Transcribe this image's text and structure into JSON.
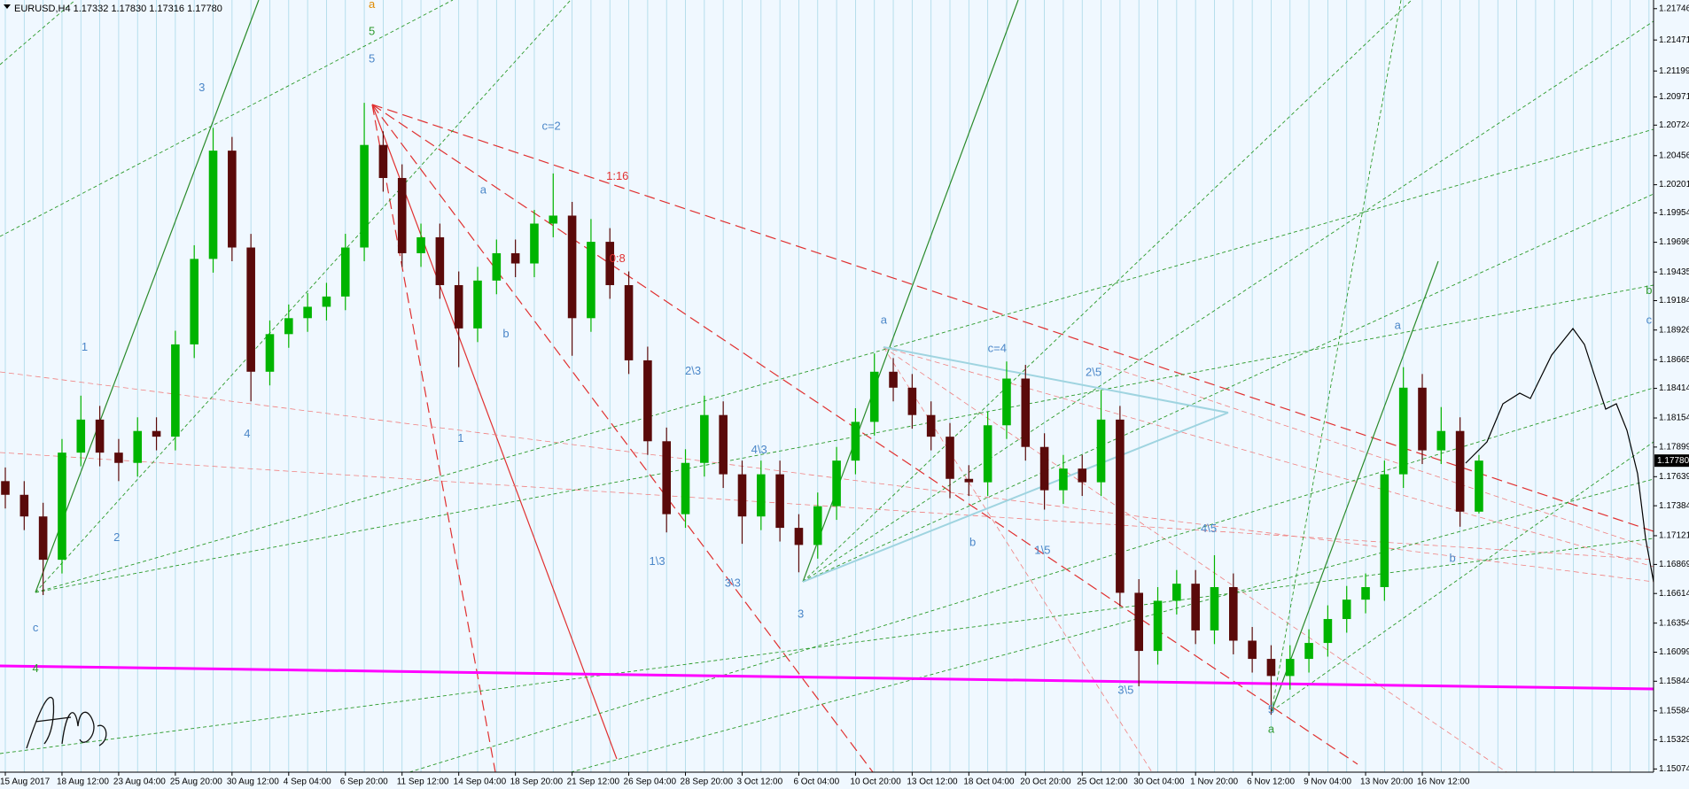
{
  "chart_data": {
    "type": "candlestick",
    "title": "EURUSD,H4  1.17332 1.17830 1.17316 1.17780",
    "categories": [
      "15 Aug 2017",
      null,
      null,
      "18 Aug 12:00",
      null,
      null,
      "23 Aug 04:00",
      null,
      null,
      "25 Aug 20:00",
      null,
      null,
      "30 Aug 12:00",
      null,
      null,
      "4 Sep 04:00",
      null,
      null,
      "6 Sep 20:00",
      null,
      null,
      "11 Sep 12:00",
      null,
      null,
      "14 Sep 04:00",
      null,
      null,
      "18 Sep 20:00",
      null,
      null,
      "21 Sep 12:00",
      null,
      null,
      "26 Sep 04:00",
      null,
      null,
      "28 Sep 20:00",
      null,
      null,
      "3 Oct 12:00",
      null,
      null,
      "6 Oct 04:00",
      null,
      null,
      "10 Oct 20:00",
      null,
      null,
      "13 Oct 12:00",
      null,
      null,
      "18 Oct 04:00",
      null,
      null,
      "20 Oct 20:00",
      null,
      null,
      "25 Oct 12:00",
      null,
      null,
      "30 Oct 04:00",
      null,
      null,
      "1 Nov 20:00",
      null,
      null,
      "6 Nov 12:00",
      null,
      null,
      "9 Nov 04:00",
      null,
      null,
      "13 Nov 20:00",
      null,
      null,
      "16 Nov 12:00",
      null,
      null,
      null
    ],
    "ohlc": [
      [
        1.176,
        1.1772,
        1.1736,
        1.1748
      ],
      [
        1.1748,
        1.176,
        1.1717,
        1.1729
      ],
      [
        1.1729,
        1.1741,
        1.166,
        1.1691
      ],
      [
        1.1691,
        1.1797,
        1.1679,
        1.1785
      ],
      [
        1.1785,
        1.1835,
        1.1773,
        1.1814
      ],
      [
        1.1814,
        1.1826,
        1.1773,
        1.1785
      ],
      [
        1.1785,
        1.1797,
        1.176,
        1.1776
      ],
      [
        1.1776,
        1.1816,
        1.1764,
        1.1804
      ],
      [
        1.1804,
        1.1816,
        1.1787,
        1.1799
      ],
      [
        1.1799,
        1.1892,
        1.1787,
        1.188
      ],
      [
        1.188,
        1.1967,
        1.1868,
        1.1955
      ],
      [
        1.1955,
        1.207,
        1.1943,
        1.205
      ],
      [
        1.205,
        1.2062,
        1.1953,
        1.1965
      ],
      [
        1.1965,
        1.1977,
        1.183,
        1.1856
      ],
      [
        1.1856,
        1.1901,
        1.1844,
        1.1889
      ],
      [
        1.1889,
        1.1915,
        1.1877,
        1.1903
      ],
      [
        1.1903,
        1.1925,
        1.1891,
        1.1913
      ],
      [
        1.1913,
        1.1934,
        1.1901,
        1.1922
      ],
      [
        1.1922,
        1.1977,
        1.191,
        1.1965
      ],
      [
        1.1965,
        1.2092,
        1.1953,
        1.2055
      ],
      [
        1.2055,
        1.2067,
        1.2014,
        1.2026
      ],
      [
        1.2026,
        1.2038,
        1.1948,
        1.196
      ],
      [
        1.196,
        1.1986,
        1.1948,
        1.1974
      ],
      [
        1.1974,
        1.1986,
        1.192,
        1.1932
      ],
      [
        1.1932,
        1.1944,
        1.186,
        1.1894
      ],
      [
        1.1894,
        1.1948,
        1.1882,
        1.1936
      ],
      [
        1.1936,
        1.1972,
        1.1924,
        1.196
      ],
      [
        1.196,
        1.1972,
        1.1939,
        1.1951
      ],
      [
        1.1951,
        1.1998,
        1.1939,
        1.1986
      ],
      [
        1.1986,
        1.203,
        1.1974,
        1.1993
      ],
      [
        1.1993,
        1.2005,
        1.187,
        1.1903
      ],
      [
        1.1903,
        1.199,
        1.1891,
        1.197
      ],
      [
        1.197,
        1.1982,
        1.192,
        1.1932
      ],
      [
        1.1932,
        1.1944,
        1.1854,
        1.1866
      ],
      [
        1.1866,
        1.1878,
        1.1783,
        1.1795
      ],
      [
        1.1795,
        1.1807,
        1.1715,
        1.1731
      ],
      [
        1.1731,
        1.1788,
        1.1719,
        1.1776
      ],
      [
        1.1776,
        1.1835,
        1.1764,
        1.1818
      ],
      [
        1.1818,
        1.183,
        1.1754,
        1.1766
      ],
      [
        1.1766,
        1.1778,
        1.1705,
        1.1729
      ],
      [
        1.1729,
        1.1778,
        1.1717,
        1.1766
      ],
      [
        1.1766,
        1.1778,
        1.1707,
        1.1719
      ],
      [
        1.1719,
        1.1731,
        1.168,
        1.1704
      ],
      [
        1.1704,
        1.175,
        1.1692,
        1.1738
      ],
      [
        1.1738,
        1.179,
        1.1726,
        1.1778
      ],
      [
        1.1778,
        1.1824,
        1.1766,
        1.1812
      ],
      [
        1.1812,
        1.1872,
        1.18,
        1.1856
      ],
      [
        1.1856,
        1.1868,
        1.183,
        1.1842
      ],
      [
        1.1842,
        1.1854,
        1.1806,
        1.1818
      ],
      [
        1.1818,
        1.183,
        1.1787,
        1.1799
      ],
      [
        1.1799,
        1.1811,
        1.1745,
        1.1762
      ],
      [
        1.1762,
        1.1774,
        1.1747,
        1.1759
      ],
      [
        1.1759,
        1.1821,
        1.1747,
        1.1809
      ],
      [
        1.1809,
        1.1865,
        1.1797,
        1.185
      ],
      [
        1.185,
        1.1862,
        1.1778,
        1.179
      ],
      [
        1.179,
        1.1802,
        1.1735,
        1.1752
      ],
      [
        1.1752,
        1.1783,
        1.174,
        1.1771
      ],
      [
        1.1771,
        1.1783,
        1.1747,
        1.1759
      ],
      [
        1.1759,
        1.184,
        1.1747,
        1.1814
      ],
      [
        1.1814,
        1.1826,
        1.165,
        1.1662
      ],
      [
        1.1662,
        1.1674,
        1.158,
        1.1611
      ],
      [
        1.1611,
        1.1667,
        1.1599,
        1.1655
      ],
      [
        1.1655,
        1.1682,
        1.1643,
        1.167
      ],
      [
        1.167,
        1.1682,
        1.1617,
        1.1629
      ],
      [
        1.1629,
        1.1695,
        1.1617,
        1.1667
      ],
      [
        1.1667,
        1.1679,
        1.1608,
        1.162
      ],
      [
        1.162,
        1.1632,
        1.1592,
        1.1604
      ],
      [
        1.1604,
        1.1616,
        1.1555,
        1.1589
      ],
      [
        1.1589,
        1.1616,
        1.1577,
        1.1604
      ],
      [
        1.1604,
        1.163,
        1.1592,
        1.1618
      ],
      [
        1.1618,
        1.1651,
        1.1606,
        1.1639
      ],
      [
        1.1639,
        1.1668,
        1.1627,
        1.1656
      ],
      [
        1.1656,
        1.1679,
        1.1644,
        1.1667
      ],
      [
        1.1667,
        1.1778,
        1.1655,
        1.1766
      ],
      [
        1.1766,
        1.186,
        1.1754,
        1.1842
      ],
      [
        1.1842,
        1.1854,
        1.1775,
        1.1787
      ],
      [
        1.1787,
        1.1825,
        1.1775,
        1.1804
      ],
      [
        1.1804,
        1.1816,
        1.172,
        1.17332
      ],
      [
        1.17332,
        1.1783,
        1.17316,
        1.1778
      ]
    ],
    "up_color": "#00b400",
    "down_color": "#5a0a0a",
    "ylim": [
      1.15046,
      1.21822
    ],
    "yticks": [
      1.21746,
      1.21471,
      1.21199,
      1.20971,
      1.20724,
      1.20456,
      1.20201,
      1.19954,
      1.19696,
      1.19435,
      1.19184,
      1.18926,
      1.18665,
      1.18414,
      1.18154,
      1.17899,
      1.17639,
      1.17384,
      1.17121,
      1.16869,
      1.16614,
      1.16354,
      1.16099,
      1.15844,
      1.15584,
      1.15329,
      1.15074
    ],
    "price_marker": {
      "value": 1.1778,
      "label": "1.17780"
    },
    "annotations": [
      {
        "text": "a",
        "x": 19.4,
        "y": 1.2178,
        "color": "#e08a00"
      },
      {
        "text": "5",
        "x": 19.4,
        "y": 1.2154,
        "color": "#2e9a2e"
      },
      {
        "text": "5",
        "x": 19.4,
        "y": 1.213,
        "color": "#4a86c8"
      },
      {
        "text": "3",
        "x": 10.4,
        "y": 1.2105,
        "color": "#4a86c8"
      },
      {
        "text": "c=2",
        "x": 28.9,
        "y": 1.2071,
        "color": "#4a86c8"
      },
      {
        "text": "1:16",
        "x": 32.4,
        "y": 1.2027,
        "color": "#e03030"
      },
      {
        "text": "0:8",
        "x": 32.4,
        "y": 1.1955,
        "color": "#e03030"
      },
      {
        "text": "a",
        "x": 25.3,
        "y": 1.2015,
        "color": "#4a86c8"
      },
      {
        "text": "b",
        "x": 26.5,
        "y": 1.1889,
        "color": "#4a86c8"
      },
      {
        "text": "1",
        "x": 24.1,
        "y": 1.1797,
        "color": "#4a86c8"
      },
      {
        "text": "4",
        "x": 12.8,
        "y": 1.1801,
        "color": "#4a86c8"
      },
      {
        "text": "1",
        "x": 4.2,
        "y": 1.1877,
        "color": "#4a86c8"
      },
      {
        "text": "2",
        "x": 5.9,
        "y": 1.171,
        "color": "#4a86c8"
      },
      {
        "text": "c",
        "x": 1.6,
        "y": 1.1631,
        "color": "#4a86c8"
      },
      {
        "text": "4",
        "x": 1.6,
        "y": 1.1595,
        "color": "#2e9a2e"
      },
      {
        "text": "2\\3",
        "x": 36.4,
        "y": 1.1856,
        "color": "#4a86c8"
      },
      {
        "text": "4\\3",
        "x": 39.9,
        "y": 1.1787,
        "color": "#4a86c8"
      },
      {
        "text": "1\\3",
        "x": 34.5,
        "y": 1.1689,
        "color": "#4a86c8"
      },
      {
        "text": "3\\3",
        "x": 38.5,
        "y": 1.167,
        "color": "#4a86c8"
      },
      {
        "text": "3",
        "x": 42.1,
        "y": 1.1643,
        "color": "#4a86c8"
      },
      {
        "text": "a",
        "x": 46.5,
        "y": 1.1901,
        "color": "#4a86c8"
      },
      {
        "text": "c=4",
        "x": 52.5,
        "y": 1.1876,
        "color": "#4a86c8"
      },
      {
        "text": "2\\5",
        "x": 57.6,
        "y": 1.1855,
        "color": "#4a86c8"
      },
      {
        "text": "b",
        "x": 51.2,
        "y": 1.1706,
        "color": "#4a86c8"
      },
      {
        "text": "1\\5",
        "x": 54.9,
        "y": 1.1699,
        "color": "#4a86c8"
      },
      {
        "text": "4\\5",
        "x": 63.7,
        "y": 1.1718,
        "color": "#4a86c8"
      },
      {
        "text": "3\\5",
        "x": 59.3,
        "y": 1.1576,
        "color": "#4a86c8"
      },
      {
        "text": "5",
        "x": 67.0,
        "y": 1.1559,
        "color": "#4a86c8"
      },
      {
        "text": "a",
        "x": 67.0,
        "y": 1.1542,
        "color": "#2e9a2e"
      },
      {
        "text": "a",
        "x": 73.7,
        "y": 1.1896,
        "color": "#4a86c8"
      },
      {
        "text": "b",
        "x": 76.6,
        "y": 1.1692,
        "color": "#4a86c8"
      },
      {
        "text": "b",
        "x": 87.0,
        "y": 1.1927,
        "color": "#2e9a2e"
      },
      {
        "text": "c",
        "x": 87.0,
        "y": 1.1901,
        "color": "#4a86c8"
      }
    ]
  }
}
